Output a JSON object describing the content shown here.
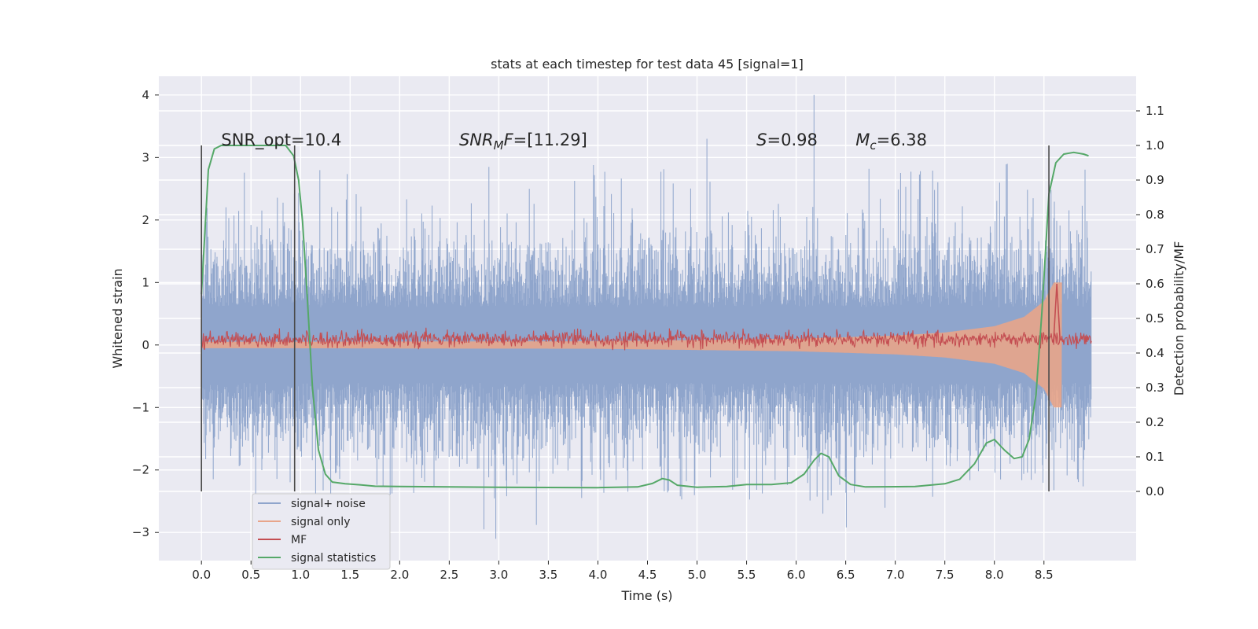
{
  "chart_data": {
    "type": "line",
    "title": "stats at each timestep for test data 45 [signal=1]",
    "xlabel": "Time (s)",
    "ylabel_left": "Whitened strain",
    "ylabel_right": "Detection probability/MF",
    "xlim": [
      -0.43,
      9.43
    ],
    "ylim_left": [
      -3.45,
      4.3
    ],
    "ylim_right": [
      -0.2,
      1.2
    ],
    "x_ticks": [
      0.0,
      0.5,
      1.0,
      1.5,
      2.0,
      2.5,
      3.0,
      3.5,
      4.0,
      4.5,
      5.0,
      5.5,
      6.0,
      6.5,
      7.0,
      7.5,
      8.0,
      8.5
    ],
    "x_tick_labels": [
      "0.0",
      "0.5",
      "1.0",
      "1.5",
      "2.0",
      "2.5",
      "3.0",
      "3.5",
      "4.0",
      "4.5",
      "5.0",
      "5.5",
      "6.0",
      "6.5",
      "7.0",
      "7.5",
      "8.0",
      "8.5"
    ],
    "y_left_ticks": [
      -3,
      -2,
      -1,
      0,
      1,
      2,
      3,
      4
    ],
    "y_left_tick_labels": [
      "−3",
      "−2",
      "−1",
      "0",
      "1",
      "2",
      "3",
      "4"
    ],
    "y_right_ticks": [
      0.0,
      0.1,
      0.2,
      0.3,
      0.4,
      0.5,
      0.6,
      0.7,
      0.8,
      0.9,
      1.0,
      1.1
    ],
    "y_right_tick_labels": [
      "0.0",
      "0.1",
      "0.2",
      "0.3",
      "0.4",
      "0.5",
      "0.6",
      "0.7",
      "0.8",
      "0.9",
      "1.0",
      "1.1"
    ],
    "grid": true,
    "legend_position": "lower-left",
    "annotations": [
      {
        "text": "SNR_opt=10.4",
        "x": 0.2,
        "y_right": 1.0
      },
      {
        "text": "SNR_MF=[11.29]",
        "x": 2.6,
        "y_right": 1.0
      },
      {
        "text": "S=0.98",
        "x": 5.6,
        "y_right": 1.0
      },
      {
        "text": "M_c=6.38",
        "x": 6.6,
        "y_right": 1.0
      }
    ],
    "vertical_markers_x": [
      0.0,
      0.94,
      8.55
    ],
    "vertical_marker_range_right": [
      0.0,
      1.0
    ],
    "series": [
      {
        "name": "signal+ noise",
        "axis": "left",
        "color": "#8fa5cc",
        "kind": "noise-band",
        "x_range": [
          0.0,
          8.98
        ],
        "typical_amplitude": 1.1,
        "peak_max": 4.0,
        "peak_min": -3.1
      },
      {
        "name": "signal only",
        "axis": "left",
        "color": "#e8a58a",
        "kind": "chirp",
        "x_range": [
          0.0,
          8.68
        ],
        "envelope": [
          [
            0.0,
            0.05
          ],
          [
            4.0,
            0.06
          ],
          [
            6.0,
            0.1
          ],
          [
            7.0,
            0.15
          ],
          [
            7.5,
            0.2
          ],
          [
            8.0,
            0.3
          ],
          [
            8.3,
            0.45
          ],
          [
            8.5,
            0.7
          ],
          [
            8.6,
            1.0
          ],
          [
            8.68,
            1.0
          ]
        ]
      },
      {
        "name": "MF",
        "axis": "right",
        "color": "#c44e52",
        "kind": "band",
        "x_range": [
          0.0,
          8.98
        ],
        "center": 0.44,
        "amplitude": 0.02,
        "spike_x": 8.63,
        "spike_y": 0.6
      },
      {
        "name": "signal statistics",
        "axis": "right",
        "color": "#55a868",
        "kind": "line",
        "points": [
          [
            0.0,
            0.57
          ],
          [
            0.07,
            0.93
          ],
          [
            0.13,
            0.99
          ],
          [
            0.2,
            1.0
          ],
          [
            0.5,
            1.0
          ],
          [
            0.85,
            1.0
          ],
          [
            0.93,
            0.97
          ],
          [
            0.98,
            0.9
          ],
          [
            1.02,
            0.78
          ],
          [
            1.07,
            0.55
          ],
          [
            1.12,
            0.3
          ],
          [
            1.18,
            0.12
          ],
          [
            1.25,
            0.05
          ],
          [
            1.32,
            0.027
          ],
          [
            1.45,
            0.022
          ],
          [
            1.6,
            0.019
          ],
          [
            1.75,
            0.015
          ],
          [
            2.0,
            0.014
          ],
          [
            3.0,
            0.012
          ],
          [
            4.0,
            0.011
          ],
          [
            4.4,
            0.013
          ],
          [
            4.55,
            0.023
          ],
          [
            4.65,
            0.037
          ],
          [
            4.72,
            0.033
          ],
          [
            4.8,
            0.018
          ],
          [
            5.0,
            0.012
          ],
          [
            5.3,
            0.014
          ],
          [
            5.5,
            0.02
          ],
          [
            5.75,
            0.02
          ],
          [
            5.95,
            0.025
          ],
          [
            6.08,
            0.05
          ],
          [
            6.18,
            0.09
          ],
          [
            6.25,
            0.11
          ],
          [
            6.33,
            0.1
          ],
          [
            6.43,
            0.045
          ],
          [
            6.55,
            0.02
          ],
          [
            6.7,
            0.013
          ],
          [
            7.2,
            0.014
          ],
          [
            7.5,
            0.022
          ],
          [
            7.65,
            0.035
          ],
          [
            7.8,
            0.08
          ],
          [
            7.92,
            0.14
          ],
          [
            8.0,
            0.15
          ],
          [
            8.1,
            0.12
          ],
          [
            8.2,
            0.095
          ],
          [
            8.28,
            0.1
          ],
          [
            8.35,
            0.15
          ],
          [
            8.42,
            0.28
          ],
          [
            8.48,
            0.52
          ],
          [
            8.55,
            0.86
          ],
          [
            8.62,
            0.95
          ],
          [
            8.7,
            0.975
          ],
          [
            8.8,
            0.98
          ],
          [
            8.9,
            0.975
          ],
          [
            8.95,
            0.97
          ]
        ]
      }
    ]
  }
}
